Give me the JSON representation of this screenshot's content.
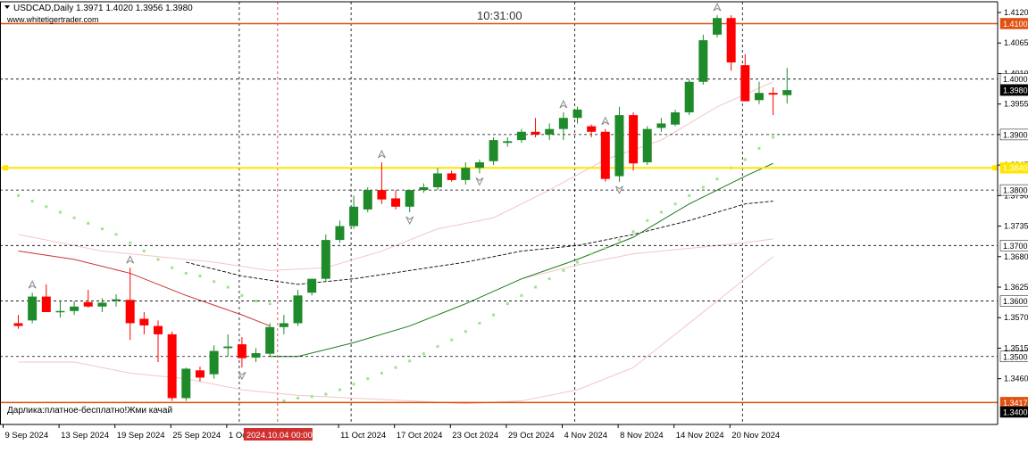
{
  "header": {
    "symbol_line": "USDCAD,Daily  1.3971 1.4020 1.3956 1.3980",
    "website": "www.whitetigertrader.com",
    "clock": "10:31:00",
    "footer_text": "Дарлика:платное-бесплатно!Жми качай"
  },
  "colors": {
    "background": "#ffffff",
    "bull": "#1e8a2a",
    "bear": "#ff0000",
    "yellow_line": "#ffe600",
    "orange_line": "#e05010",
    "sma_red": "#cc3333",
    "sma_green": "#1b7a1b",
    "envelope": "#f2c6c6",
    "psar": "#9be58a",
    "grid": "#000000"
  },
  "chart_data": {
    "type": "candlestick",
    "symbol": "USDCAD",
    "timeframe": "Daily",
    "last_ohlc": {
      "open": 1.3971,
      "high": 1.402,
      "low": 1.3956,
      "close": 1.398
    },
    "ylim": [
      1.339,
      1.4125
    ],
    "price_axis_ticks": [
      "1.4120",
      "1.4065",
      "1.4010",
      "1.3955",
      "1.3900",
      "1.3845",
      "1.3790",
      "1.3735",
      "1.3680",
      "1.3625",
      "1.3570",
      "1.3515",
      "1.3460"
    ],
    "price_axis_tick_values": [
      1.412,
      1.4065,
      1.401,
      1.3955,
      1.39,
      1.3845,
      1.379,
      1.3735,
      1.368,
      1.3625,
      1.357,
      1.3515,
      1.346
    ],
    "x_tick_labels": [
      "9 Sep 2024",
      "13 Sep 2024",
      "19 Sep 2024",
      "25 Sep 2024",
      "1 Oct 2024",
      "11 Oct 2024",
      "17 Oct 2024",
      "23 Oct 2024",
      "29 Oct 2024",
      "4 Nov 2024",
      "8 Nov 2024",
      "14 Nov 2024",
      "20 Nov 2024"
    ],
    "x_tick_index": [
      0,
      4,
      8,
      12,
      16,
      24,
      28,
      32,
      36,
      40,
      44,
      48,
      52
    ],
    "crosshair_label": "2024.10.04 00:00",
    "crosshair_index": 19,
    "candles": [
      {
        "o": 1.356,
        "h": 1.3575,
        "l": 1.355,
        "c": 1.3555
      },
      {
        "o": 1.3565,
        "h": 1.3615,
        "l": 1.356,
        "c": 1.3608
      },
      {
        "o": 1.3608,
        "h": 1.363,
        "l": 1.358,
        "c": 1.358
      },
      {
        "o": 1.358,
        "h": 1.36,
        "l": 1.357,
        "c": 1.3582
      },
      {
        "o": 1.3582,
        "h": 1.36,
        "l": 1.3575,
        "c": 1.359
      },
      {
        "o": 1.3598,
        "h": 1.362,
        "l": 1.3588,
        "c": 1.359
      },
      {
        "o": 1.359,
        "h": 1.3605,
        "l": 1.358,
        "c": 1.3597
      },
      {
        "o": 1.36,
        "h": 1.3612,
        "l": 1.359,
        "c": 1.3603
      },
      {
        "o": 1.3602,
        "h": 1.366,
        "l": 1.353,
        "c": 1.356
      },
      {
        "o": 1.3568,
        "h": 1.358,
        "l": 1.354,
        "c": 1.3556
      },
      {
        "o": 1.3555,
        "h": 1.3565,
        "l": 1.349,
        "c": 1.354
      },
      {
        "o": 1.354,
        "h": 1.3545,
        "l": 1.342,
        "c": 1.3425
      },
      {
        "o": 1.3425,
        "h": 1.348,
        "l": 1.342,
        "c": 1.3478
      },
      {
        "o": 1.3475,
        "h": 1.3482,
        "l": 1.3455,
        "c": 1.3462
      },
      {
        "o": 1.3468,
        "h": 1.352,
        "l": 1.346,
        "c": 1.351
      },
      {
        "o": 1.3515,
        "h": 1.354,
        "l": 1.35,
        "c": 1.3518
      },
      {
        "o": 1.3522,
        "h": 1.3535,
        "l": 1.348,
        "c": 1.3497
      },
      {
        "o": 1.3498,
        "h": 1.3515,
        "l": 1.349,
        "c": 1.3506
      },
      {
        "o": 1.3505,
        "h": 1.356,
        "l": 1.35,
        "c": 1.3553
      },
      {
        "o": 1.3553,
        "h": 1.3575,
        "l": 1.354,
        "c": 1.356
      },
      {
        "o": 1.356,
        "h": 1.362,
        "l": 1.3555,
        "c": 1.361
      },
      {
        "o": 1.3615,
        "h": 1.364,
        "l": 1.361,
        "c": 1.364
      },
      {
        "o": 1.364,
        "h": 1.372,
        "l": 1.3635,
        "c": 1.371
      },
      {
        "o": 1.371,
        "h": 1.3745,
        "l": 1.3705,
        "c": 1.3735
      },
      {
        "o": 1.3735,
        "h": 1.379,
        "l": 1.373,
        "c": 1.377
      },
      {
        "o": 1.3765,
        "h": 1.3805,
        "l": 1.376,
        "c": 1.38
      },
      {
        "o": 1.38,
        "h": 1.385,
        "l": 1.3775,
        "c": 1.3783
      },
      {
        "o": 1.3785,
        "h": 1.38,
        "l": 1.3765,
        "c": 1.377
      },
      {
        "o": 1.377,
        "h": 1.38,
        "l": 1.376,
        "c": 1.38
      },
      {
        "o": 1.38,
        "h": 1.3812,
        "l": 1.3795,
        "c": 1.3805
      },
      {
        "o": 1.3805,
        "h": 1.384,
        "l": 1.38,
        "c": 1.383
      },
      {
        "o": 1.383,
        "h": 1.3835,
        "l": 1.3815,
        "c": 1.3818
      },
      {
        "o": 1.3818,
        "h": 1.385,
        "l": 1.381,
        "c": 1.384
      },
      {
        "o": 1.384,
        "h": 1.3855,
        "l": 1.383,
        "c": 1.385
      },
      {
        "o": 1.3852,
        "h": 1.3895,
        "l": 1.3845,
        "c": 1.389
      },
      {
        "o": 1.3885,
        "h": 1.3895,
        "l": 1.3878,
        "c": 1.3888
      },
      {
        "o": 1.389,
        "h": 1.391,
        "l": 1.3885,
        "c": 1.3905
      },
      {
        "o": 1.3905,
        "h": 1.393,
        "l": 1.3895,
        "c": 1.39
      },
      {
        "o": 1.39,
        "h": 1.392,
        "l": 1.389,
        "c": 1.391
      },
      {
        "o": 1.391,
        "h": 1.394,
        "l": 1.389,
        "c": 1.393
      },
      {
        "o": 1.393,
        "h": 1.395,
        "l": 1.392,
        "c": 1.3945
      },
      {
        "o": 1.3915,
        "h": 1.3918,
        "l": 1.3895,
        "c": 1.3905
      },
      {
        "o": 1.3905,
        "h": 1.391,
        "l": 1.3815,
        "c": 1.382
      },
      {
        "o": 1.3825,
        "h": 1.395,
        "l": 1.3815,
        "c": 1.3935
      },
      {
        "o": 1.3935,
        "h": 1.394,
        "l": 1.3835,
        "c": 1.3848
      },
      {
        "o": 1.385,
        "h": 1.3915,
        "l": 1.3845,
        "c": 1.391
      },
      {
        "o": 1.3912,
        "h": 1.393,
        "l": 1.3905,
        "c": 1.392
      },
      {
        "o": 1.3918,
        "h": 1.3945,
        "l": 1.3915,
        "c": 1.394
      },
      {
        "o": 1.394,
        "h": 1.4,
        "l": 1.3935,
        "c": 1.3995
      },
      {
        "o": 1.3995,
        "h": 1.408,
        "l": 1.399,
        "c": 1.407
      },
      {
        "o": 1.408,
        "h": 1.4115,
        "l": 1.4075,
        "c": 1.411
      },
      {
        "o": 1.411,
        "h": 1.4115,
        "l": 1.4015,
        "c": 1.403
      },
      {
        "o": 1.4025,
        "h": 1.4045,
        "l": 1.396,
        "c": 1.396
      },
      {
        "o": 1.3962,
        "h": 1.3995,
        "l": 1.3955,
        "c": 1.3975
      },
      {
        "o": 1.3975,
        "h": 1.3985,
        "l": 1.3935,
        "c": 1.3972
      },
      {
        "o": 1.3971,
        "h": 1.402,
        "l": 1.3956,
        "c": 1.398
      }
    ],
    "horizontal_levels": [
      {
        "price": 1.41,
        "label": "1.4100",
        "color": "#e05010",
        "style": "solid"
      },
      {
        "price": 1.4,
        "label": "1.4000",
        "color": "#000000",
        "style": "dashed"
      },
      {
        "price": 1.398,
        "label": "1.3980",
        "color": "#000000",
        "style": "tag"
      },
      {
        "price": 1.39,
        "label": "1.3900",
        "color": "#000000",
        "style": "dashed"
      },
      {
        "price": 1.384,
        "label": "1.3840",
        "color": "#ffe600",
        "style": "thick"
      },
      {
        "price": 1.38,
        "label": "1.3800",
        "color": "#000000",
        "style": "dashed"
      },
      {
        "price": 1.37,
        "label": "1.3700",
        "color": "#000000",
        "style": "dashed"
      },
      {
        "price": 1.36,
        "label": "1.3600",
        "color": "#000000",
        "style": "dashed"
      },
      {
        "price": 1.35,
        "label": "1.3500",
        "color": "#000000",
        "style": "dashed"
      },
      {
        "price": 1.3417,
        "label": "1.3417",
        "color": "#e05010",
        "style": "solid"
      },
      {
        "price": 1.34,
        "label": "1.3400",
        "color": "#000000",
        "style": "tag"
      }
    ],
    "vertical_lines_index": [
      16,
      24,
      40,
      52
    ],
    "indicators": {
      "sma_red": [
        [
          0,
          1.369
        ],
        [
          4,
          1.3675
        ],
        [
          8,
          1.365
        ],
        [
          12,
          1.361
        ],
        [
          16,
          1.3575
        ],
        [
          18,
          1.3555
        ]
      ],
      "sma_green": [
        [
          18,
          1.35
        ],
        [
          20,
          1.35
        ],
        [
          24,
          1.3525
        ],
        [
          28,
          1.3555
        ],
        [
          32,
          1.3595
        ],
        [
          36,
          1.364
        ],
        [
          40,
          1.3675
        ],
        [
          44,
          1.3715
        ],
        [
          48,
          1.3775
        ],
        [
          52,
          1.3825
        ],
        [
          54,
          1.3848
        ]
      ],
      "black_dashed": [
        [
          12,
          1.367
        ],
        [
          16,
          1.3645
        ],
        [
          20,
          1.363
        ],
        [
          24,
          1.364
        ],
        [
          28,
          1.3655
        ],
        [
          32,
          1.367
        ],
        [
          36,
          1.369
        ],
        [
          40,
          1.37
        ],
        [
          44,
          1.372
        ],
        [
          48,
          1.3745
        ],
        [
          52,
          1.3775
        ],
        [
          54,
          1.378
        ]
      ],
      "envelope_upper": [
        [
          0,
          1.372
        ],
        [
          6,
          1.369
        ],
        [
          10,
          1.368
        ],
        [
          14,
          1.367
        ],
        [
          18,
          1.3655
        ],
        [
          22,
          1.366
        ],
        [
          26,
          1.369
        ],
        [
          30,
          1.373
        ],
        [
          34,
          1.375
        ],
        [
          38,
          1.38
        ],
        [
          42,
          1.3855
        ],
        [
          46,
          1.389
        ],
        [
          50,
          1.395
        ],
        [
          54,
          1.3995
        ]
      ],
      "envelope_lower": [
        [
          0,
          1.349
        ],
        [
          4,
          1.349
        ],
        [
          8,
          1.347
        ],
        [
          12,
          1.346
        ],
        [
          16,
          1.344
        ],
        [
          20,
          1.343
        ],
        [
          24,
          1.3425
        ],
        [
          28,
          1.342
        ],
        [
          32,
          1.3415
        ],
        [
          36,
          1.342
        ],
        [
          40,
          1.344
        ],
        [
          44,
          1.348
        ],
        [
          48,
          1.356
        ],
        [
          52,
          1.364
        ],
        [
          54,
          1.368
        ]
      ],
      "envelope_lower_right": [
        [
          36,
          1.364
        ],
        [
          40,
          1.3665
        ],
        [
          44,
          1.3685
        ],
        [
          48,
          1.3695
        ],
        [
          52,
          1.3705
        ],
        [
          54,
          1.3712
        ]
      ],
      "psar": [
        [
          0,
          1.379
        ],
        [
          1,
          1.378
        ],
        [
          2,
          1.377
        ],
        [
          3,
          1.376
        ],
        [
          4,
          1.375
        ],
        [
          5,
          1.374
        ],
        [
          6,
          1.373
        ],
        [
          7,
          1.372
        ],
        [
          8,
          1.3705
        ],
        [
          9,
          1.369
        ],
        [
          10,
          1.3675
        ],
        [
          11,
          1.366
        ],
        [
          12,
          1.365
        ],
        [
          13,
          1.3645
        ],
        [
          14,
          1.3635
        ],
        [
          15,
          1.3625
        ],
        [
          16,
          1.361
        ],
        [
          17,
          1.36
        ],
        [
          18,
          1.3595
        ],
        [
          19,
          1.342
        ],
        [
          20,
          1.3425
        ],
        [
          21,
          1.3428
        ],
        [
          22,
          1.3432
        ],
        [
          23,
          1.344
        ],
        [
          24,
          1.345
        ],
        [
          25,
          1.346
        ],
        [
          26,
          1.347
        ],
        [
          27,
          1.348
        ],
        [
          28,
          1.3492
        ],
        [
          29,
          1.3505
        ],
        [
          30,
          1.3518
        ],
        [
          31,
          1.353
        ],
        [
          32,
          1.3545
        ],
        [
          33,
          1.356
        ],
        [
          34,
          1.3575
        ],
        [
          35,
          1.3595
        ],
        [
          36,
          1.361
        ],
        [
          37,
          1.3625
        ],
        [
          38,
          1.364
        ],
        [
          39,
          1.3655
        ],
        [
          40,
          1.367
        ],
        [
          41,
          1.3685
        ],
        [
          42,
          1.3695
        ],
        [
          43,
          1.371
        ],
        [
          44,
          1.3725
        ],
        [
          45,
          1.3745
        ],
        [
          46,
          1.376
        ],
        [
          47,
          1.3775
        ],
        [
          48,
          1.379
        ],
        [
          49,
          1.3805
        ],
        [
          50,
          1.382
        ],
        [
          51,
          1.384
        ],
        [
          52,
          1.3855
        ],
        [
          53,
          1.3875
        ],
        [
          54,
          1.3895
        ]
      ]
    },
    "fractals_up": [
      1,
      8,
      26,
      39,
      42,
      50
    ],
    "fractals_down": [
      16,
      28,
      33,
      43
    ]
  }
}
